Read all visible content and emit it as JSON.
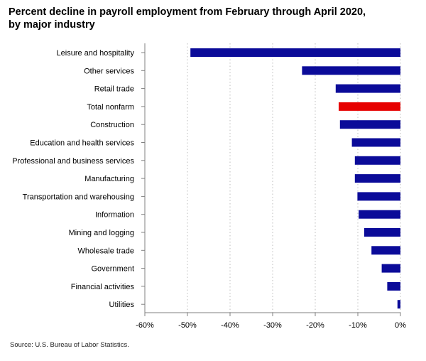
{
  "chart_data": {
    "type": "bar",
    "orientation": "horizontal",
    "title": "Percent decline in payroll employment from February through April 2020, by major industry",
    "source": "Source: U.S. Bureau of Labor Statistics.",
    "xlim": [
      -60,
      0
    ],
    "xticks": [
      "-60%",
      "-50%",
      "-40%",
      "-30%",
      "-20%",
      "-10%",
      "0%"
    ],
    "xtick_values": [
      -60,
      -50,
      -40,
      -30,
      -20,
      -10,
      0
    ],
    "grid": "vertical dotted",
    "categories": [
      "Leisure and hospitality",
      "Other services",
      "Retail trade",
      "Total nonfarm",
      "Construction",
      "Education and health services",
      "Professional and business services",
      "Manufacturing",
      "Transportation and warehousing",
      "Information",
      "Mining and logging",
      "Wholesale trade",
      "Government",
      "Financial activities",
      "Utilities"
    ],
    "values": [
      -49.3,
      -23.1,
      -15.2,
      -14.5,
      -14.2,
      -11.4,
      -10.7,
      -10.7,
      -10.1,
      -9.8,
      -8.5,
      -6.8,
      -4.4,
      -3.1,
      -0.7
    ],
    "colors": {
      "default": "#0b0b99",
      "highlight": "#e60000",
      "highlight_category": "Total nonfarm"
    }
  }
}
